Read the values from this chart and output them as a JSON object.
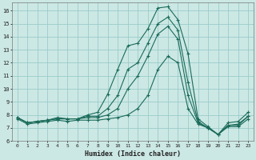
{
  "xlabel": "Humidex (Indice chaleur)",
  "bg_color": "#cce8e4",
  "grid_color": "#99cccc",
  "line_color": "#1a6b5a",
  "xlim": [
    -0.5,
    23.5
  ],
  "ylim": [
    6,
    16.6
  ],
  "xticks": [
    0,
    1,
    2,
    3,
    4,
    5,
    6,
    7,
    8,
    9,
    10,
    11,
    12,
    13,
    14,
    15,
    16,
    17,
    18,
    19,
    20,
    21,
    22,
    23
  ],
  "yticks": [
    6,
    7,
    8,
    9,
    10,
    11,
    12,
    13,
    14,
    15,
    16
  ],
  "series": [
    [
      7.8,
      7.4,
      7.5,
      7.6,
      7.8,
      7.7,
      7.7,
      8.0,
      8.2,
      9.6,
      11.5,
      13.3,
      13.5,
      14.6,
      16.2,
      16.3,
      15.3,
      12.7,
      7.7,
      7.1,
      6.5,
      7.4,
      7.5,
      8.2
    ],
    [
      7.8,
      7.4,
      7.5,
      7.6,
      7.7,
      7.7,
      7.7,
      7.9,
      7.9,
      8.5,
      9.5,
      11.5,
      12.0,
      13.5,
      15.0,
      15.5,
      14.5,
      10.5,
      7.5,
      7.0,
      6.5,
      7.2,
      7.3,
      7.9
    ],
    [
      7.8,
      7.4,
      7.5,
      7.6,
      7.7,
      7.7,
      7.7,
      7.8,
      7.8,
      8.0,
      8.5,
      10.0,
      11.0,
      12.5,
      14.2,
      14.8,
      13.8,
      9.5,
      7.4,
      7.0,
      6.5,
      7.2,
      7.2,
      7.9
    ],
    [
      7.7,
      7.3,
      7.4,
      7.5,
      7.6,
      7.5,
      7.6,
      7.6,
      7.6,
      7.7,
      7.8,
      8.0,
      8.5,
      9.5,
      11.5,
      12.5,
      12.0,
      8.5,
      7.3,
      7.0,
      6.5,
      7.1,
      7.1,
      7.7
    ]
  ]
}
